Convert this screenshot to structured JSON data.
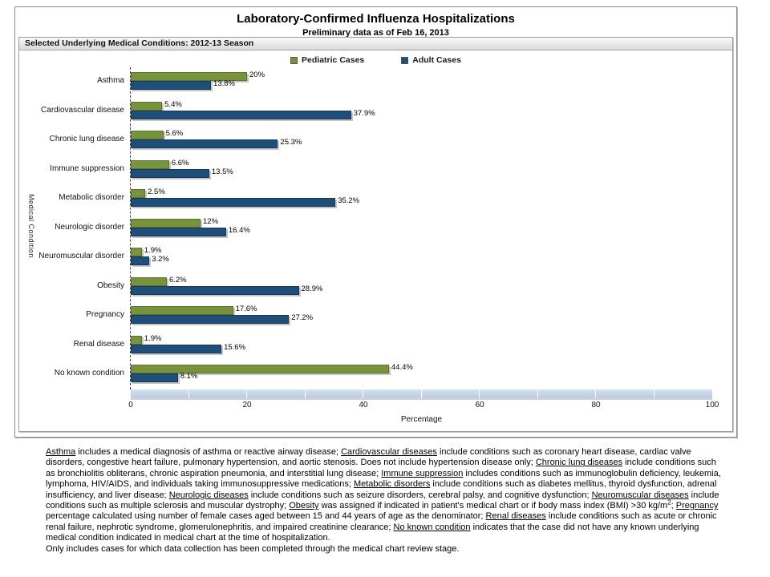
{
  "header": {
    "title": "Laboratory-Confirmed Influenza Hospitalizations",
    "subtitle": "Preliminary data as of Feb 16, 2013",
    "section_label": "Selected Underlying Medical Conditions: 2012-13 Season"
  },
  "legend": [
    {
      "label": "Pediatric Cases",
      "color": "#77933C"
    },
    {
      "label": "Adult Cases",
      "color": "#1F4E79"
    }
  ],
  "chart_data": {
    "type": "bar",
    "orientation": "horizontal",
    "title": "Laboratory-Confirmed Influenza Hospitalizations",
    "subtitle": "Preliminary data as of Feb 16, 2013",
    "xlabel": "Percentage",
    "ylabel": "Medical Condition",
    "xlim": [
      0,
      100
    ],
    "x_ticks": [
      "0",
      "20",
      "40",
      "60",
      "80",
      "100"
    ],
    "grid": false,
    "legend_position": "top",
    "categories": [
      "Asthma",
      "Cardiovascular disease",
      "Chronic lung disease",
      "Immune suppression",
      "Metabolic disorder",
      "Neurologic disorder",
      "Neuromuscular disorder",
      "Obesity",
      "Pregnancy",
      "Renal disease",
      "No known condition"
    ],
    "series": [
      {
        "name": "Pediatric Cases",
        "color": "#77933C",
        "border_color": "#5a7130",
        "values": [
          20,
          5.4,
          5.6,
          6.6,
          2.5,
          12,
          1.9,
          6.2,
          17.6,
          1.9,
          44.4
        ],
        "labels": [
          "20%",
          "5.4%",
          "5.6%",
          "6.6%",
          "2.5%",
          "12%",
          "1.9%",
          "6.2%",
          "17.6%",
          "1.9%",
          "44.4%"
        ]
      },
      {
        "name": "Adult Cases",
        "color": "#1F4E79",
        "border_color": "#16375a",
        "values": [
          13.8,
          37.9,
          25.3,
          13.5,
          35.2,
          16.4,
          3.2,
          28.9,
          27.2,
          15.6,
          8.1
        ],
        "labels": [
          "13.8%",
          "37.9%",
          "25.3%",
          "13.5%",
          "35.2%",
          "16.4%",
          "3.2%",
          "28.9%",
          "27.2%",
          "15.6%",
          "8.1%"
        ]
      }
    ],
    "axis_band_color": "#BCD2E6",
    "band_segments": 10
  },
  "footnote": {
    "paragraphs": [
      [
        {
          "t": "Asthma",
          "u": true
        },
        {
          "t": " includes a medical diagnosis of asthma or reactive airway disease; "
        },
        {
          "t": "Cardiovascular diseases",
          "u": true
        },
        {
          "t": " include conditions such as coronary heart disease, cardiac valve disorders, congestive heart failure, pulmonary hypertension, and aortic stenosis.  Does not include hypertension disease only;  "
        },
        {
          "t": "Chronic lung diseases",
          "u": true
        },
        {
          "t": " include conditions such as bronchiolitis obliterans, chronic aspiration pneumonia, and interstitial lung disease;  "
        },
        {
          "t": "Immune suppression",
          "u": true
        },
        {
          "t": " includes conditions such as immunoglobulin deficiency, leukemia, lymphoma, HIV/AIDS, and individuals taking immunosuppressive medications;  "
        },
        {
          "t": "Metabolic disorders",
          "u": true
        },
        {
          "t": " include conditions such as diabetes mellitus, thyroid dysfunction, adrenal insufficiency, and liver disease;  "
        },
        {
          "t": "Neurologic diseases",
          "u": true
        },
        {
          "t": " include conditions such as seizure disorders, cerebral palsy, and cognitive dysfunction;  "
        },
        {
          "t": "Neuromuscular diseases",
          "u": true
        },
        {
          "t": " include conditions such as multiple sclerosis and muscular dystrophy;  "
        },
        {
          "t": "Obesity",
          "u": true
        },
        {
          "t": " was assigned if indicated in patient's medical chart or if body mass index (BMI) >30 kg/m"
        },
        {
          "t": "2",
          "sup": true
        },
        {
          "t": ";  "
        },
        {
          "t": "Pregnancy",
          "u": true
        },
        {
          "t": " percentage calculated using number of female cases aged between 15 and 44 years of age as the denominator;  "
        },
        {
          "t": "Renal diseases",
          "u": true
        },
        {
          "t": " include conditions such as acute or chronic renal failure, nephrotic syndrome, glomerulonephritis, and impaired creatinine clearance;  "
        },
        {
          "t": "No known condition",
          "u": true
        },
        {
          "t": " indicates that the case did not have any known underlying medical condition indicated in medical chart at the time of hospitalization."
        }
      ],
      [
        {
          "t": "Only includes cases for which data collection has been completed through the medical chart review stage."
        }
      ]
    ]
  }
}
